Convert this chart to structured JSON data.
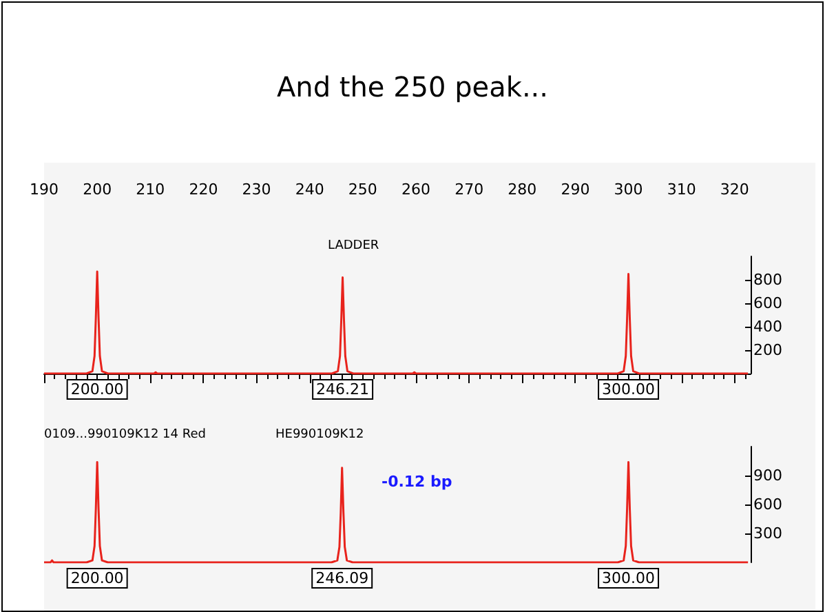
{
  "chart_data": [
    {
      "type": "line",
      "title": "And the 250 peak...",
      "annotations": [
        "LADDER",
        {
          "text": "200.00",
          "x": 200,
          "y": 0
        },
        {
          "text": "246.21",
          "x": 246.21,
          "y": 0
        },
        {
          "text": "300.00",
          "x": 300,
          "y": 0
        }
      ],
      "xlim": [
        190,
        323
      ],
      "xticks": [
        190,
        200,
        210,
        220,
        230,
        240,
        250,
        260,
        270,
        280,
        290,
        300,
        310,
        320
      ],
      "ylim": [
        0,
        1000
      ],
      "yticks": [
        200,
        400,
        600,
        800
      ],
      "grid": false,
      "marker": "none",
      "line_style": "solid",
      "series": [
        {
          "color": "#e8231c",
          "x": [
            190,
            198,
            199.1,
            199.5,
            199.75,
            200,
            200.25,
            200.5,
            200.9,
            202,
            210.7,
            211,
            211.3,
            244.2,
            245.3,
            245.7,
            245.95,
            246.2,
            246.45,
            246.7,
            247.1,
            248.2,
            259.4,
            259.7,
            260,
            298,
            299.1,
            299.5,
            299.75,
            300,
            300.25,
            300.5,
            300.9,
            302,
            322.5
          ],
          "values": [
            0,
            0,
            20,
            150,
            480,
            870,
            480,
            150,
            20,
            0,
            0,
            10,
            0,
            0,
            20,
            150,
            460,
            820,
            460,
            150,
            20,
            0,
            0,
            10,
            0,
            0,
            20,
            150,
            470,
            850,
            470,
            150,
            20,
            0,
            0
          ]
        }
      ]
    },
    {
      "type": "line",
      "annotations": [
        "0109...990109K12 14 Red",
        "HE990109K12",
        {
          "text": "200.00",
          "x": 200,
          "y": 0
        },
        {
          "text": "246.09",
          "x": 246.09,
          "y": 0
        },
        {
          "text": "300.00",
          "x": 300,
          "y": 0
        },
        "-0.12 bp"
      ],
      "xlim": [
        190,
        323
      ],
      "ylim": [
        0,
        1200
      ],
      "yticks": [
        300,
        600,
        900
      ],
      "tick_labels": "y",
      "grid": false,
      "marker": "none",
      "line_style": "solid",
      "series": [
        {
          "color": "#e8231c",
          "x": [
            190,
            191.2,
            191.5,
            191.8,
            198,
            199.1,
            199.5,
            199.75,
            200,
            200.25,
            200.5,
            200.9,
            202,
            244.1,
            245.2,
            245.6,
            245.85,
            246.09,
            246.35,
            246.6,
            247,
            248.1,
            298,
            299.1,
            299.5,
            299.75,
            300,
            300.25,
            300.5,
            300.9,
            302,
            322.5
          ],
          "values": [
            0,
            0,
            20,
            0,
            0,
            20,
            170,
            560,
            1040,
            560,
            170,
            20,
            0,
            0,
            20,
            160,
            520,
            980,
            520,
            160,
            20,
            0,
            0,
            20,
            170,
            560,
            1040,
            560,
            170,
            20,
            0,
            0
          ]
        }
      ]
    }
  ]
}
